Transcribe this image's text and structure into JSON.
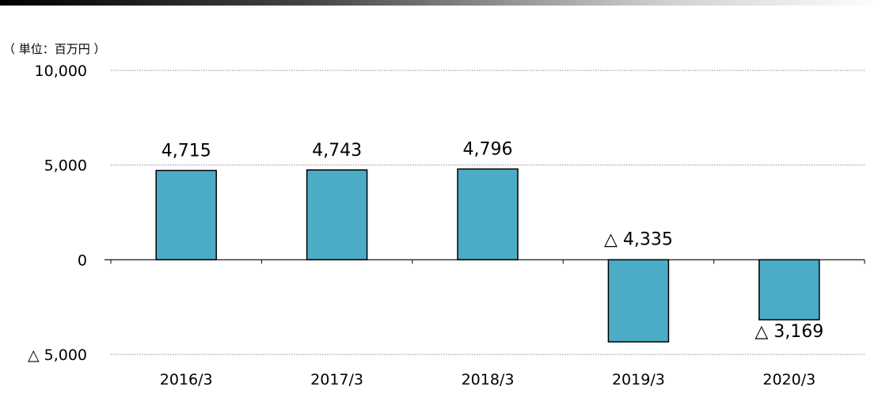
{
  "chart_data": {
    "type": "bar",
    "unit_label": "（ 単位：百万円 ）",
    "categories": [
      "2016/3",
      "2017/3",
      "2018/3",
      "2019/3",
      "2020/3"
    ],
    "values": [
      4715,
      4743,
      4796,
      -4335,
      -3169
    ],
    "data_labels": [
      "4,715",
      "4,743",
      "4,796",
      "△ 4,335",
      "△ 3,169"
    ],
    "y_ticks": [
      {
        "value": 10000,
        "label": "10,000"
      },
      {
        "value": 5000,
        "label": "5,000"
      },
      {
        "value": 0,
        "label": "0"
      },
      {
        "value": -5000,
        "label": "△ 5,000"
      }
    ],
    "ylim": [
      -5000,
      10000
    ],
    "grid": true,
    "legend": "none",
    "colors": {
      "bar_fill": "#4bacc6",
      "bar_stroke": "#000000",
      "grid": "#8c8c8c",
      "axis": "#000000"
    }
  }
}
